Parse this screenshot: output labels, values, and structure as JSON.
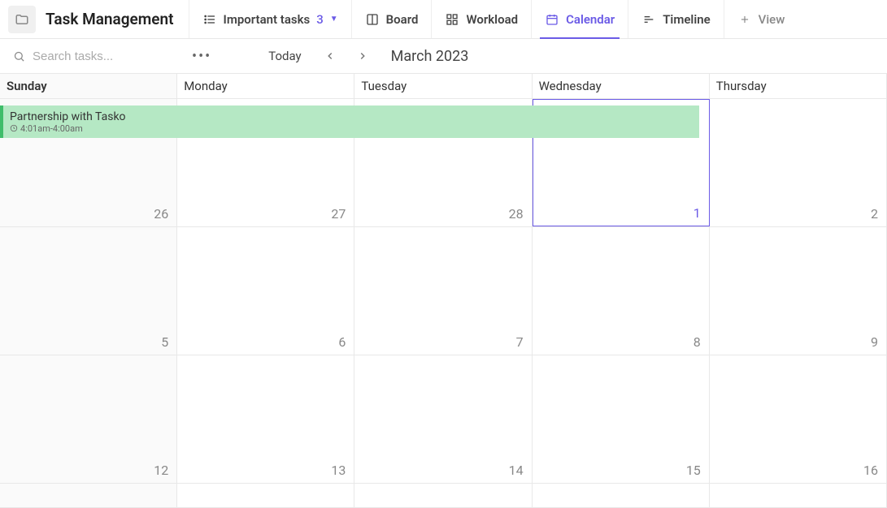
{
  "header": {
    "title": "Task Management"
  },
  "tabs": {
    "important": {
      "label": "Important tasks",
      "count": "3"
    },
    "board": {
      "label": "Board"
    },
    "workload": {
      "label": "Workload"
    },
    "calendar": {
      "label": "Calendar"
    },
    "timeline": {
      "label": "Timeline"
    },
    "view": {
      "label": "View"
    }
  },
  "toolbar": {
    "search_placeholder": "Search tasks...",
    "today_label": "Today",
    "month_label": "March 2023"
  },
  "calendar": {
    "days": [
      "Sunday",
      "Monday",
      "Tuesday",
      "Wednesday",
      "Thursday"
    ],
    "rows": [
      {
        "nums": [
          "26",
          "27",
          "28",
          "1",
          "2"
        ],
        "today_index": 3,
        "prev_month_count": 3
      },
      {
        "nums": [
          "5",
          "6",
          "7",
          "8",
          "9"
        ]
      },
      {
        "nums": [
          "12",
          "13",
          "14",
          "15",
          "16"
        ]
      }
    ],
    "event": {
      "title": "Partnership with Tasko",
      "time": "4:01am-4:00am",
      "span_cols": 4,
      "bg_color": "#b5e8c4",
      "bar_color": "#3fbd6a"
    }
  },
  "colors": {
    "accent": "#6b5be6",
    "border": "#e8e8e8",
    "muted": "#888"
  }
}
